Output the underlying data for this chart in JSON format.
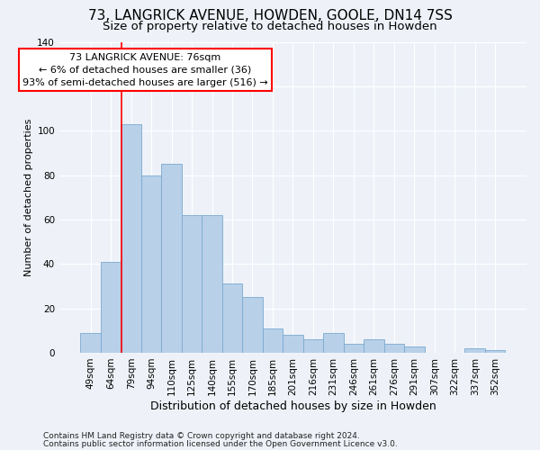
{
  "title": "73, LANGRICK AVENUE, HOWDEN, GOOLE, DN14 7SS",
  "subtitle": "Size of property relative to detached houses in Howden",
  "xlabel": "Distribution of detached houses by size in Howden",
  "ylabel": "Number of detached properties",
  "categories": [
    "49sqm",
    "64sqm",
    "79sqm",
    "94sqm",
    "110sqm",
    "125sqm",
    "140sqm",
    "155sqm",
    "170sqm",
    "185sqm",
    "201sqm",
    "216sqm",
    "231sqm",
    "246sqm",
    "261sqm",
    "276sqm",
    "291sqm",
    "307sqm",
    "322sqm",
    "337sqm",
    "352sqm"
  ],
  "values": [
    9,
    41,
    103,
    80,
    85,
    62,
    62,
    31,
    25,
    11,
    8,
    6,
    9,
    4,
    6,
    4,
    3,
    0,
    0,
    2,
    1
  ],
  "bar_color": "#b8d0e8",
  "bar_edge_color": "#7aaad0",
  "red_line_x": 1.55,
  "annotation_title": "73 LANGRICK AVENUE: 76sqm",
  "annotation_line1": "← 6% of detached houses are smaller (36)",
  "annotation_line2": "93% of semi-detached houses are larger (516) →",
  "ylim": [
    0,
    140
  ],
  "yticks": [
    0,
    20,
    40,
    60,
    80,
    100,
    120,
    140
  ],
  "footer1": "Contains HM Land Registry data © Crown copyright and database right 2024.",
  "footer2": "Contains public sector information licensed under the Open Government Licence v3.0.",
  "bg_color": "#eef2f8",
  "grid_color": "#ffffff",
  "title_fontsize": 11,
  "subtitle_fontsize": 9.5,
  "xlabel_fontsize": 9,
  "ylabel_fontsize": 8,
  "tick_fontsize": 7.5,
  "footer_fontsize": 6.5,
  "ann_fontsize": 8
}
